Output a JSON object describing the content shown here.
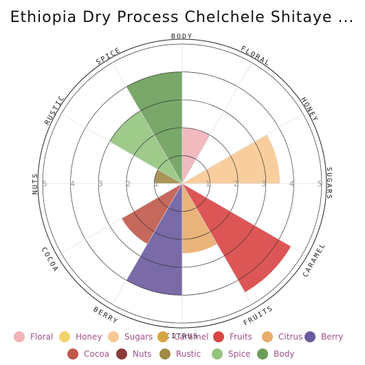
{
  "chart_data": {
    "type": "polar-area",
    "title": "Ethiopia Dry Process Chelchele Shitaye ...",
    "categories": [
      "Floral",
      "Honey",
      "Sugars",
      "Caramel",
      "Fruits",
      "Citrus",
      "Berry",
      "Cocoa",
      "Nuts",
      "Rustic",
      "Spice",
      "Body"
    ],
    "values": [
      2,
      0,
      3.5,
      0,
      4.5,
      2.5,
      4,
      2.5,
      0,
      1,
      3,
      4
    ],
    "colors": [
      "#f0b3b8",
      "#f2d36b",
      "#f8c994",
      "#d4a543",
      "#d94444",
      "#e8ab6b",
      "#6c5a9e",
      "#c0584a",
      "#8b3a3a",
      "#a08a45",
      "#93c47d",
      "#6a9e5a"
    ],
    "ylim": [
      0,
      5
    ],
    "yticks": [
      1,
      2,
      3,
      4,
      5
    ],
    "grid": true
  }
}
